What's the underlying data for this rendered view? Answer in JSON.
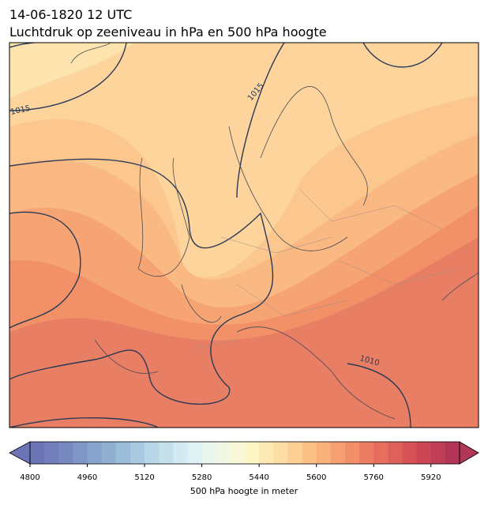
{
  "header": {
    "date": "14-06-1820 12 UTC",
    "title": "Luchtdruk op zeeniveau in hPa en 500 hPa hoogte"
  },
  "map": {
    "contour_labels": [
      "1015",
      "1015",
      "1010"
    ]
  },
  "colorbar": {
    "label": "500 hPa hoogte in meter",
    "range": [
      4800,
      6000
    ],
    "ticks": [
      4800,
      4960,
      5120,
      5280,
      5440,
      5600,
      5760,
      5920
    ],
    "colors": [
      "#6b74b5",
      "#717fbb",
      "#7889c0",
      "#7f96c6",
      "#87a3cc",
      "#90b0d2",
      "#9cbdd9",
      "#a9c9e0",
      "#b6d5e6",
      "#c4e0ec",
      "#d2eaf1",
      "#dff1f2",
      "#e9f5ee",
      "#f1f7e4",
      "#f8f8d9",
      "#fdf6c8",
      "#fde9b4",
      "#fddda3",
      "#fccf93",
      "#fbc086",
      "#f9b07b",
      "#f69f72",
      "#f28e69",
      "#ed7d62",
      "#e76d5d",
      "#df5f5a",
      "#d55257",
      "#ca4655",
      "#bf3d55",
      "#b43657"
    ]
  }
}
